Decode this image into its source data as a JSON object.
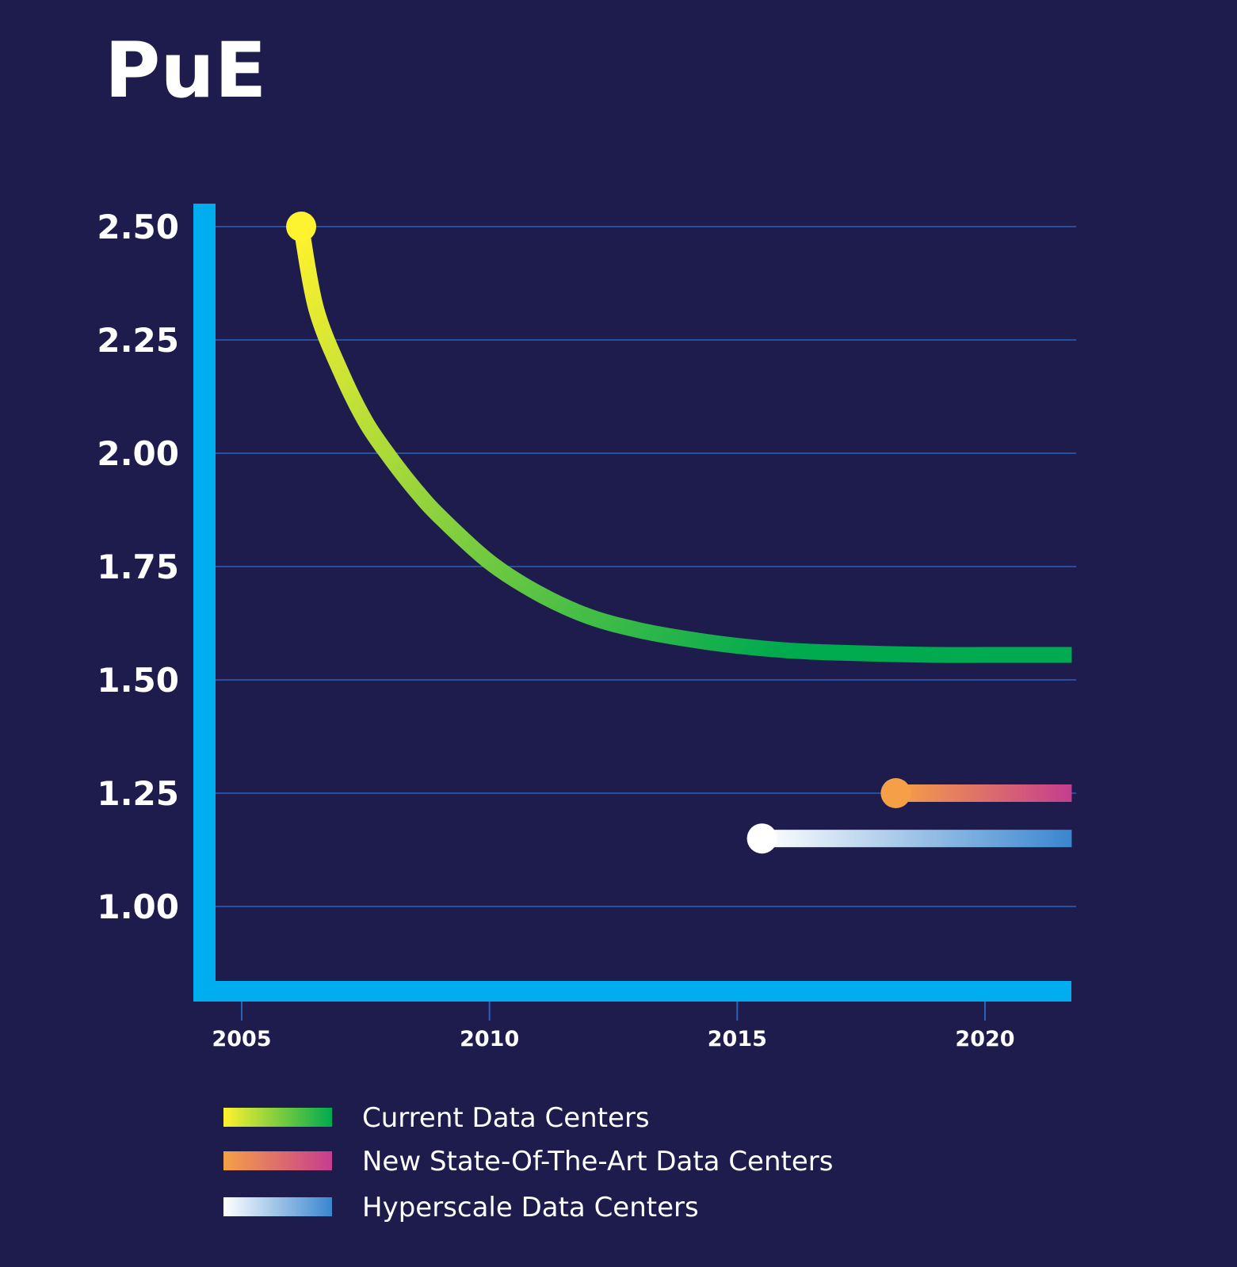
{
  "chart_data": {
    "type": "line",
    "title": "PuE",
    "xlabel": "",
    "ylabel": "",
    "xlim": [
      2004.0,
      2021.75
    ],
    "ylim": [
      0.82,
      2.53
    ],
    "x_ticks": [
      2005,
      2010,
      2015,
      2020
    ],
    "x_tick_labels": [
      "2005",
      "2010",
      "2015",
      "2020"
    ],
    "y_ticks": [
      2.5,
      2.25,
      2.0,
      1.75,
      1.5,
      1.25,
      1.0
    ],
    "y_tick_labels": [
      "2.50",
      "2.25",
      "2.00",
      "1.75",
      "1.50",
      "1.25",
      "1.00"
    ],
    "grid": true,
    "legend_position": "bottom",
    "series": [
      {
        "name": "Current Data Centers",
        "gradient": [
          "#fff22e",
          "#00aa4f"
        ],
        "x": [
          2006.2,
          2006.5,
          2007,
          2007.5,
          2008,
          2008.5,
          2009,
          2010,
          2011,
          2012,
          2013,
          2014,
          2015,
          2016,
          2017,
          2018,
          2019,
          2020,
          2021,
          2021.75
        ],
        "y": [
          2.5,
          2.32,
          2.18,
          2.07,
          1.99,
          1.92,
          1.86,
          1.76,
          1.69,
          1.64,
          1.61,
          1.59,
          1.575,
          1.565,
          1.56,
          1.557,
          1.555,
          1.555,
          1.555,
          1.555
        ]
      },
      {
        "name": "New State-Of-The-Art Data Centers",
        "gradient": [
          "#f5a047",
          "#c53d8f"
        ],
        "x": [
          2018.2,
          2021.75
        ],
        "y": [
          1.25,
          1.25
        ]
      },
      {
        "name": "Hyperscale Data Centers",
        "gradient": [
          "#ffffff",
          "#3a86cf"
        ],
        "x": [
          2015.5,
          2021.75
        ],
        "y": [
          1.15,
          1.15
        ]
      }
    ]
  },
  "colors": {
    "background": "#1d1c4d",
    "axis": "#00aeef",
    "grid": "#2a62b8"
  }
}
